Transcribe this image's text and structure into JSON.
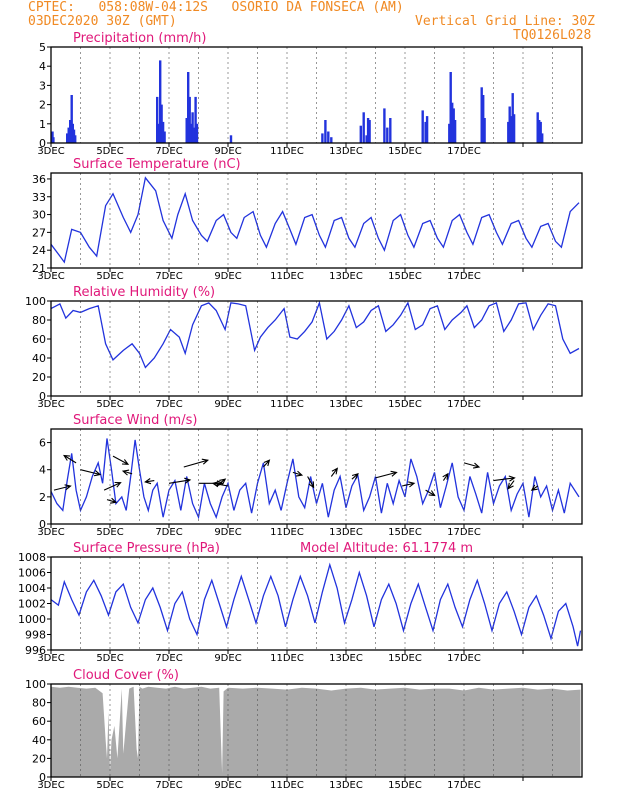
{
  "header": {
    "line1_left": "CPTEC:   058:08W-04:12S   OSORIO DA FONSECA (AM)",
    "line2_left": "03DEC2020 30Z (GMT)",
    "line2_right": "Vertical Grid Line: 30Z",
    "line3_right": "TQ0126L028"
  },
  "colors": {
    "header": "#f08a24",
    "title": "#e0187a",
    "series": "#2233dd",
    "cloud": "#aaaaaa",
    "grid": "#555555"
  },
  "x_tick_labels": [
    "3DEC",
    "5DEC",
    "7DEC",
    "9DEC",
    "11DEC",
    "13DEC",
    "15DEC",
    "17DEC"
  ],
  "chart_data": [
    {
      "type": "bar",
      "title": "Precipitation  (mm/h)",
      "x_unit": "days since 3DEC",
      "ylim": [
        0,
        5
      ],
      "yticks": [
        0,
        1,
        2,
        3,
        4,
        5
      ],
      "x": [
        0.05,
        0.08,
        0.55,
        0.6,
        0.65,
        0.7,
        0.74,
        0.78,
        0.82,
        3.6,
        3.65,
        3.7,
        3.75,
        3.8,
        3.85,
        4.6,
        4.65,
        4.7,
        4.75,
        4.8,
        4.85,
        4.9,
        4.95,
        6.1,
        9.2,
        9.3,
        9.4,
        9.5,
        10.5,
        10.6,
        10.7,
        10.75,
        10.8,
        11.3,
        11.4,
        11.5,
        12.6,
        12.7,
        12.75,
        13.5,
        13.55,
        13.6,
        13.65,
        13.7,
        14.6,
        14.65,
        14.7,
        15.5,
        15.55,
        15.6,
        15.65,
        15.7,
        16.5,
        16.55,
        16.6,
        16.65
      ],
      "values": [
        0.6,
        0.3,
        0.5,
        0.8,
        1.2,
        2.5,
        1.0,
        0.7,
        0.4,
        2.4,
        1.0,
        4.3,
        2.0,
        1.1,
        0.6,
        1.3,
        3.7,
        2.4,
        1.0,
        1.6,
        0.8,
        2.4,
        1.0,
        0.4,
        0.5,
        1.2,
        0.6,
        0.3,
        0.9,
        1.6,
        0.4,
        1.3,
        1.2,
        1.8,
        0.8,
        1.3,
        1.7,
        1.1,
        1.4,
        1.0,
        3.7,
        2.1,
        1.8,
        1.2,
        2.9,
        2.5,
        1.3,
        1.1,
        1.9,
        1.4,
        2.6,
        1.5,
        1.6,
        1.2,
        1.1,
        0.5
      ],
      "color": "#2233dd"
    },
    {
      "type": "line",
      "title": "Surface Temperature (nC)",
      "x_unit": "days since 3DEC",
      "ylim": [
        21,
        37
      ],
      "yticks": [
        21,
        24,
        27,
        30,
        33,
        36
      ],
      "x": [
        0.0,
        0.3,
        0.45,
        0.7,
        1.0,
        1.3,
        1.55,
        1.85,
        2.1,
        2.45,
        2.7,
        2.95,
        3.2,
        3.55,
        3.8,
        4.1,
        4.3,
        4.55,
        4.8,
        5.1,
        5.3,
        5.6,
        5.85,
        6.1,
        6.3,
        6.55,
        6.85,
        7.1,
        7.3,
        7.6,
        7.85,
        8.1,
        8.3,
        8.6,
        8.85,
        9.1,
        9.3,
        9.6,
        9.85,
        10.1,
        10.3,
        10.6,
        10.85,
        11.1,
        11.3,
        11.6,
        11.85,
        12.1,
        12.3,
        12.6,
        12.85,
        13.1,
        13.3,
        13.6,
        13.85,
        14.1,
        14.3,
        14.6,
        14.85,
        15.1,
        15.3,
        15.6,
        15.85,
        16.1,
        16.3,
        16.6,
        16.85,
        17.1,
        17.3,
        17.6,
        17.9
      ],
      "values": [
        25.0,
        23.0,
        22.0,
        27.5,
        27.0,
        24.5,
        23.0,
        31.5,
        33.5,
        29.5,
        27.0,
        30.0,
        36.2,
        34.0,
        29.0,
        26.0,
        30.0,
        33.5,
        29.0,
        26.5,
        25.5,
        29.0,
        30.0,
        27.0,
        26.0,
        29.5,
        30.5,
        26.5,
        24.5,
        28.5,
        30.5,
        27.5,
        25.0,
        29.5,
        30.0,
        26.5,
        24.5,
        29.0,
        29.5,
        26.0,
        24.5,
        28.5,
        29.5,
        26.0,
        24.0,
        29.0,
        30.0,
        26.5,
        24.5,
        28.5,
        29.0,
        26.0,
        24.5,
        29.0,
        30.0,
        27.0,
        25.0,
        29.5,
        30.0,
        27.0,
        25.0,
        28.5,
        29.0,
        26.0,
        24.5,
        28.0,
        28.5,
        25.5,
        24.5,
        30.5,
        32.0
      ],
      "color": "#2233dd"
    },
    {
      "type": "line",
      "title": "Relative Humidity (%)",
      "x_unit": "days since 3DEC",
      "ylim": [
        0,
        100
      ],
      "yticks": [
        0,
        20,
        40,
        60,
        80,
        100
      ],
      "x": [
        0.0,
        0.3,
        0.5,
        0.75,
        1.0,
        1.3,
        1.6,
        1.85,
        2.1,
        2.45,
        2.75,
        3.0,
        3.2,
        3.5,
        3.8,
        4.05,
        4.35,
        4.55,
        4.8,
        5.1,
        5.35,
        5.6,
        5.9,
        6.1,
        6.35,
        6.6,
        6.9,
        7.1,
        7.35,
        7.6,
        7.9,
        8.1,
        8.35,
        8.6,
        8.85,
        9.1,
        9.35,
        9.6,
        9.85,
        10.1,
        10.35,
        10.6,
        10.85,
        11.1,
        11.35,
        11.6,
        11.85,
        12.1,
        12.35,
        12.6,
        12.85,
        13.1,
        13.35,
        13.6,
        13.9,
        14.1,
        14.35,
        14.6,
        14.85,
        15.1,
        15.35,
        15.6,
        15.85,
        16.1,
        16.35,
        16.6,
        16.85,
        17.1,
        17.35,
        17.6,
        17.9
      ],
      "values": [
        92,
        97,
        82,
        90,
        88,
        92,
        95,
        55,
        38,
        48,
        55,
        45,
        30,
        40,
        55,
        70,
        62,
        45,
        75,
        95,
        98,
        90,
        70,
        98,
        97,
        95,
        48,
        62,
        72,
        80,
        92,
        62,
        60,
        68,
        78,
        98,
        60,
        68,
        80,
        95,
        72,
        78,
        90,
        95,
        68,
        75,
        85,
        98,
        70,
        75,
        92,
        95,
        70,
        80,
        88,
        95,
        72,
        80,
        95,
        98,
        68,
        80,
        97,
        98,
        70,
        85,
        97,
        95,
        60,
        45,
        50
      ],
      "color": "#2233dd"
    },
    {
      "type": "line",
      "title": "Surface Wind (m/s)",
      "x_unit": "days since 3DEC",
      "ylim": [
        0,
        7
      ],
      "yticks": [
        0,
        2,
        4,
        6
      ],
      "x": [
        0.0,
        0.2,
        0.4,
        0.55,
        0.7,
        0.85,
        1.0,
        1.2,
        1.4,
        1.6,
        1.75,
        1.9,
        2.05,
        2.2,
        2.4,
        2.55,
        2.7,
        2.85,
        3.0,
        3.15,
        3.3,
        3.45,
        3.6,
        3.8,
        4.0,
        4.2,
        4.4,
        4.6,
        4.8,
        5.0,
        5.2,
        5.4,
        5.6,
        5.8,
        6.0,
        6.2,
        6.4,
        6.6,
        6.8,
        7.0,
        7.2,
        7.4,
        7.6,
        7.8,
        8.0,
        8.2,
        8.4,
        8.6,
        8.8,
        9.0,
        9.2,
        9.4,
        9.6,
        9.8,
        10.0,
        10.2,
        10.4,
        10.6,
        10.8,
        11.0,
        11.2,
        11.4,
        11.6,
        11.8,
        12.0,
        12.2,
        12.4,
        12.6,
        12.8,
        13.0,
        13.2,
        13.4,
        13.6,
        13.8,
        14.0,
        14.2,
        14.4,
        14.6,
        14.8,
        15.0,
        15.2,
        15.4,
        15.6,
        15.8,
        16.0,
        16.2,
        16.4,
        16.6,
        16.8,
        17.0,
        17.2,
        17.4,
        17.6,
        17.9
      ],
      "values": [
        2.4,
        1.5,
        1.0,
        3.2,
        5.2,
        2.5,
        1.0,
        2.0,
        3.5,
        4.5,
        3.0,
        6.3,
        4.0,
        1.5,
        2.0,
        1.0,
        3.5,
        6.2,
        4.0,
        2.0,
        1.0,
        2.5,
        3.0,
        0.5,
        2.5,
        3.2,
        1.0,
        3.5,
        1.5,
        0.5,
        3.0,
        1.5,
        0.5,
        2.0,
        3.0,
        1.0,
        2.5,
        3.0,
        0.8,
        3.0,
        4.5,
        1.5,
        2.5,
        1.0,
        3.0,
        4.8,
        2.0,
        1.2,
        3.5,
        1.5,
        3.0,
        0.5,
        2.5,
        3.5,
        1.2,
        2.8,
        3.6,
        1.0,
        2.0,
        3.5,
        0.8,
        3.0,
        1.5,
        3.2,
        2.0,
        4.8,
        3.5,
        1.5,
        2.5,
        3.8,
        1.2,
        2.8,
        4.5,
        2.0,
        1.0,
        3.5,
        2.2,
        0.8,
        3.8,
        1.5,
        2.8,
        3.5,
        1.0,
        2.2,
        3.0,
        0.5,
        3.5,
        2.0,
        2.8,
        1.0,
        2.5,
        0.8,
        3.0,
        2.0
      ],
      "vectors": [
        {
          "x": 0.1,
          "y": 2.5,
          "u": 0.55,
          "v": 0.3
        },
        {
          "x": 0.85,
          "y": 4.5,
          "u": -0.4,
          "v": 0.55
        },
        {
          "x": 1.0,
          "y": 4.0,
          "u": 0.65,
          "v": -0.35
        },
        {
          "x": 1.8,
          "y": 2.5,
          "u": 0.55,
          "v": 0.55
        },
        {
          "x": 1.9,
          "y": 1.8,
          "u": 0.3,
          "v": -0.2
        },
        {
          "x": 2.1,
          "y": 5.0,
          "u": 0.5,
          "v": -0.6
        },
        {
          "x": 2.75,
          "y": 3.7,
          "u": -0.3,
          "v": 0.2
        },
        {
          "x": 3.5,
          "y": 3.2,
          "u": -0.3,
          "v": -0.1
        },
        {
          "x": 4.0,
          "y": 3.0,
          "u": 0.7,
          "v": 0.25
        },
        {
          "x": 4.5,
          "y": 4.2,
          "u": 0.8,
          "v": 0.5
        },
        {
          "x": 5.0,
          "y": 3.0,
          "u": 0.8,
          "v": 0.0
        },
        {
          "x": 5.6,
          "y": 2.8,
          "u": 0.3,
          "v": 0.5
        },
        {
          "x": 6.0,
          "y": 2.8,
          "u": -0.5,
          "v": 0.2
        },
        {
          "x": 7.2,
          "y": 4.2,
          "u": 0.2,
          "v": 0.5
        },
        {
          "x": 8.2,
          "y": 3.8,
          "u": 0.3,
          "v": -0.2
        },
        {
          "x": 8.7,
          "y": 3.5,
          "u": 0.2,
          "v": -0.8
        },
        {
          "x": 9.5,
          "y": 3.5,
          "u": 0.2,
          "v": 0.6
        },
        {
          "x": 10.2,
          "y": 3.3,
          "u": 0.2,
          "v": 0.4
        },
        {
          "x": 11.0,
          "y": 3.4,
          "u": 0.7,
          "v": 0.4
        },
        {
          "x": 11.9,
          "y": 2.8,
          "u": 0.4,
          "v": 0.2
        },
        {
          "x": 12.7,
          "y": 2.5,
          "u": 0.3,
          "v": -0.4
        },
        {
          "x": 13.3,
          "y": 3.2,
          "u": 0.15,
          "v": 0.5
        },
        {
          "x": 14.0,
          "y": 4.5,
          "u": 0.5,
          "v": -0.3
        },
        {
          "x": 15.0,
          "y": 3.2,
          "u": 0.7,
          "v": 0.2
        },
        {
          "x": 15.7,
          "y": 3.2,
          "u": -0.2,
          "v": -0.6
        },
        {
          "x": 16.5,
          "y": 2.8,
          "u": -0.2,
          "v": -0.3
        }
      ],
      "color": "#2233dd"
    },
    {
      "type": "line",
      "title": "Surface Pressure (hPa)",
      "annotation": "Model Altitude: 61.1774 m",
      "x_unit": "days since 3DEC",
      "ylim": [
        996,
        1008
      ],
      "yticks": [
        996,
        998,
        1000,
        1002,
        1004,
        1006,
        1008
      ],
      "x": [
        0.0,
        0.25,
        0.45,
        0.7,
        0.95,
        1.2,
        1.45,
        1.7,
        1.95,
        2.2,
        2.45,
        2.7,
        2.95,
        3.2,
        3.45,
        3.7,
        3.95,
        4.2,
        4.45,
        4.7,
        4.95,
        5.2,
        5.45,
        5.7,
        5.95,
        6.2,
        6.45,
        6.7,
        6.95,
        7.2,
        7.45,
        7.7,
        7.95,
        8.2,
        8.45,
        8.7,
        8.95,
        9.2,
        9.45,
        9.7,
        9.95,
        10.2,
        10.45,
        10.7,
        10.95,
        11.2,
        11.45,
        11.7,
        11.95,
        12.2,
        12.45,
        12.7,
        12.95,
        13.2,
        13.45,
        13.7,
        13.95,
        14.2,
        14.45,
        14.7,
        14.95,
        15.2,
        15.45,
        15.7,
        15.95,
        16.2,
        16.45,
        16.7,
        16.95,
        17.2,
        17.45,
        17.7,
        17.85,
        17.95
      ],
      "values": [
        1002.5,
        1001.8,
        1004.8,
        1002.5,
        1000.5,
        1003.5,
        1005.0,
        1003.0,
        1000.5,
        1003.5,
        1004.5,
        1001.5,
        999.5,
        1002.5,
        1004.0,
        1001.5,
        998.5,
        1002.0,
        1003.5,
        1000.0,
        998.0,
        1002.5,
        1005.0,
        1002.0,
        999.0,
        1002.5,
        1005.5,
        1002.5,
        999.5,
        1003.0,
        1005.5,
        1003.0,
        999.0,
        1002.5,
        1005.5,
        1003.0,
        999.5,
        1003.5,
        1007.0,
        1004.0,
        999.5,
        1002.5,
        1006.0,
        1003.0,
        999.0,
        1002.5,
        1004.5,
        1002.0,
        998.5,
        1002.0,
        1004.5,
        1001.5,
        998.5,
        1002.5,
        1004.5,
        1001.5,
        999.0,
        1002.5,
        1005.0,
        1002.0,
        998.5,
        1002.0,
        1003.5,
        1001.0,
        998.0,
        1001.5,
        1003.0,
        1000.5,
        997.5,
        1001.0,
        1002.0,
        999.0,
        996.5,
        998.5
      ],
      "color": "#2233dd"
    },
    {
      "type": "area",
      "title": "Cloud Cover (%)",
      "x_unit": "days since 3DEC",
      "ylim": [
        0,
        100
      ],
      "yticks": [
        0,
        20,
        40,
        60,
        80,
        100
      ],
      "x": [
        0.0,
        0.3,
        0.6,
        0.9,
        1.2,
        1.5,
        1.75,
        1.85,
        1.9,
        1.95,
        2.0,
        2.05,
        2.15,
        2.25,
        2.4,
        2.45,
        2.55,
        2.65,
        2.8,
        2.9,
        2.95,
        3.0,
        3.1,
        3.3,
        3.6,
        3.9,
        4.2,
        4.5,
        4.8,
        5.1,
        5.4,
        5.7,
        5.8,
        5.85,
        6.0,
        6.5,
        7.0,
        7.5,
        8.0,
        8.5,
        9.0,
        9.5,
        10.0,
        10.5,
        11.0,
        11.5,
        12.0,
        12.5,
        13.0,
        13.5,
        14.0,
        14.5,
        15.0,
        15.5,
        16.0,
        16.5,
        17.0,
        17.5,
        17.95
      ],
      "values": [
        97,
        96,
        97,
        96,
        95,
        96,
        90,
        40,
        20,
        70,
        5,
        40,
        55,
        20,
        95,
        25,
        60,
        95,
        97,
        30,
        20,
        97,
        95,
        97,
        96,
        95,
        97,
        95,
        96,
        97,
        95,
        96,
        4,
        92,
        96,
        95,
        96,
        95,
        94,
        96,
        95,
        93,
        95,
        96,
        94,
        95,
        96,
        94,
        95,
        95,
        93,
        96,
        94,
        95,
        96,
        94,
        95,
        93,
        94
      ],
      "color": "#aaaaaa"
    }
  ]
}
